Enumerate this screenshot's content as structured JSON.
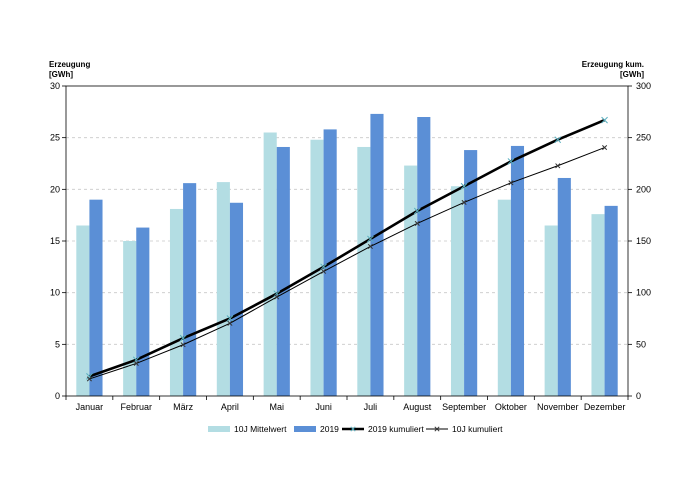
{
  "chart_data": {
    "type": "bar",
    "categories": [
      "Januar",
      "Februar",
      "März",
      "April",
      "Mai",
      "Juni",
      "Juli",
      "August",
      "September",
      "Oktober",
      "November",
      "Dezember"
    ],
    "y_left": {
      "title_line1": "Erzeugung",
      "title_line2": "[GWh]",
      "range": [
        0,
        30
      ],
      "ticks": [
        0,
        5,
        10,
        15,
        20,
        25,
        30
      ]
    },
    "y_right": {
      "title_line1": "Erzeugung kum.",
      "title_line2": "[GWh]",
      "range": [
        0,
        300
      ],
      "ticks": [
        0,
        50,
        100,
        150,
        200,
        250,
        300
      ]
    },
    "grid": "horizontal dashed",
    "legend_position": "bottom",
    "series": [
      {
        "name": "10J  Mittelwert",
        "kind": "bar",
        "axis": "left",
        "color": "#b3dde3",
        "values": [
          16.5,
          15.0,
          18.1,
          20.7,
          25.5,
          24.8,
          24.1,
          22.3,
          20.3,
          19.0,
          16.5,
          17.6
        ]
      },
      {
        "name": "2019",
        "kind": "bar",
        "axis": "left",
        "color": "#5b8fd6",
        "values": [
          19.0,
          16.3,
          20.6,
          18.7,
          24.1,
          25.8,
          27.3,
          27.0,
          23.8,
          24.2,
          21.1,
          18.4
        ]
      },
      {
        "name": "2019 kumuliert",
        "kind": "line",
        "axis": "right",
        "color": "#000000",
        "values": [
          19,
          35,
          56,
          75,
          99,
          125,
          152,
          179,
          203,
          227,
          248,
          267
        ]
      },
      {
        "name": "10J kumuliert",
        "kind": "line",
        "axis": "right",
        "color": "#000000",
        "values": [
          16.5,
          31.5,
          49.6,
          70.3,
          95.8,
          120.6,
          144.7,
          167,
          187.3,
          206.3,
          222.8,
          240.4
        ]
      }
    ]
  }
}
